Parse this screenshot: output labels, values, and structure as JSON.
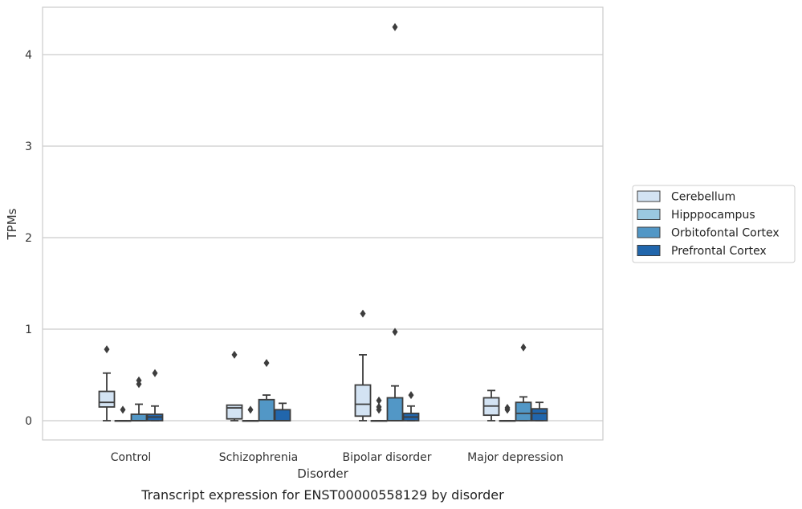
{
  "chart_data": {
    "type": "box",
    "title": "",
    "caption": "Transcript expression for ENST00000558129 by disorder",
    "xlabel": "Disorder",
    "ylabel": "TPMs",
    "ylim": [
      -0.2,
      4.5
    ],
    "yticks": [
      0,
      1,
      2,
      3,
      4
    ],
    "categories": [
      "Control",
      "Schizophrenia",
      "Bipolar disorder",
      "Major depression"
    ],
    "grid": "horizontal",
    "legend_position": "right",
    "series": [
      {
        "name": "Cerebellum",
        "color": "#d3e3f3",
        "boxes": [
          {
            "min": 0.0,
            "q1": 0.15,
            "median": 0.2,
            "q3": 0.32,
            "max": 0.52,
            "outliers": [
              0.78
            ]
          },
          {
            "min": 0.0,
            "q1": 0.02,
            "median": 0.14,
            "q3": 0.17,
            "max": 0.17,
            "outliers": [
              0.72
            ]
          },
          {
            "min": 0.0,
            "q1": 0.05,
            "median": 0.18,
            "q3": 0.39,
            "max": 0.72,
            "outliers": [
              1.17
            ]
          },
          {
            "min": 0.0,
            "q1": 0.06,
            "median": 0.16,
            "q3": 0.25,
            "max": 0.33,
            "outliers": []
          }
        ]
      },
      {
        "name": "Hipppocampus",
        "color": "#9ac8e0",
        "boxes": [
          {
            "min": 0.0,
            "q1": 0.0,
            "median": 0.0,
            "q3": 0.0,
            "max": 0.0,
            "outliers": [
              0.12
            ]
          },
          {
            "min": 0.0,
            "q1": 0.0,
            "median": 0.0,
            "q3": 0.0,
            "max": 0.0,
            "outliers": [
              0.12
            ]
          },
          {
            "min": 0.0,
            "q1": 0.0,
            "median": 0.0,
            "q3": 0.0,
            "max": 0.0,
            "outliers": [
              0.12,
              0.15,
              0.22
            ]
          },
          {
            "min": 0.0,
            "q1": 0.0,
            "median": 0.0,
            "q3": 0.0,
            "max": 0.0,
            "outliers": [
              0.12,
              0.14
            ]
          }
        ]
      },
      {
        "name": "Orbitofontal Cortex",
        "color": "#5297c6",
        "boxes": [
          {
            "min": 0.0,
            "q1": 0.0,
            "median": 0.0,
            "q3": 0.07,
            "max": 0.18,
            "outliers": [
              0.4,
              0.44
            ]
          },
          {
            "min": 0.0,
            "q1": 0.0,
            "median": 0.0,
            "q3": 0.23,
            "max": 0.28,
            "outliers": [
              0.63
            ]
          },
          {
            "min": 0.0,
            "q1": 0.0,
            "median": 0.0,
            "q3": 0.25,
            "max": 0.38,
            "outliers": [
              0.97,
              4.3
            ]
          },
          {
            "min": 0.0,
            "q1": 0.0,
            "median": 0.08,
            "q3": 0.2,
            "max": 0.26,
            "outliers": [
              0.8
            ]
          }
        ]
      },
      {
        "name": "Prefrontal Cortex",
        "color": "#2166ac",
        "boxes": [
          {
            "min": 0.0,
            "q1": 0.0,
            "median": 0.04,
            "q3": 0.07,
            "max": 0.16,
            "outliers": [
              0.52
            ]
          },
          {
            "min": 0.0,
            "q1": 0.0,
            "median": 0.0,
            "q3": 0.12,
            "max": 0.19,
            "outliers": []
          },
          {
            "min": 0.0,
            "q1": 0.0,
            "median": 0.04,
            "q3": 0.08,
            "max": 0.16,
            "outliers": [
              0.28
            ]
          },
          {
            "min": 0.0,
            "q1": 0.0,
            "median": 0.08,
            "q3": 0.13,
            "max": 0.2,
            "outliers": []
          }
        ]
      }
    ]
  }
}
